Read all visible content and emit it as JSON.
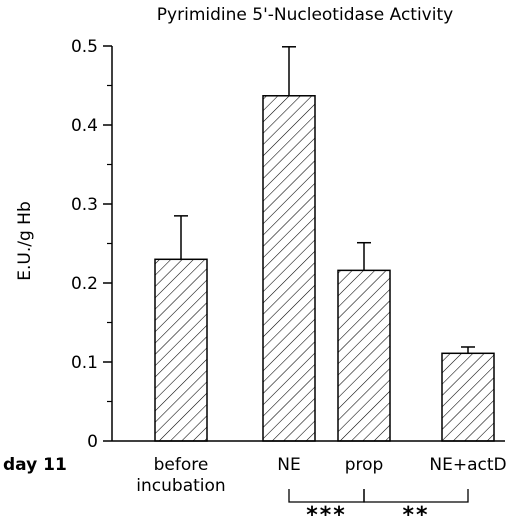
{
  "chart_data": {
    "type": "bar",
    "title": "Pyrimidine 5'-Nucleotidase Activity",
    "ylabel": "E.U./g Hb",
    "xlabel": "",
    "row_label": "day 11",
    "ylim": [
      0,
      0.5
    ],
    "yticks": [
      "0",
      "0.1",
      "0.2",
      "0.3",
      "0.4",
      "0.5"
    ],
    "categories": [
      {
        "lines": [
          "before",
          "incubation"
        ]
      },
      {
        "lines": [
          "NE"
        ]
      },
      {
        "lines": [
          "prop"
        ]
      },
      {
        "lines": [
          "NE+actD"
        ]
      }
    ],
    "values": [
      0.23,
      0.437,
      0.216,
      0.111
    ],
    "errors": [
      0.055,
      0.062,
      0.035,
      0.008
    ],
    "fill": "hatched",
    "significance": [
      {
        "from": 1,
        "to": 2,
        "label": "***"
      },
      {
        "from": 2,
        "to": 3,
        "label": "**"
      }
    ]
  }
}
